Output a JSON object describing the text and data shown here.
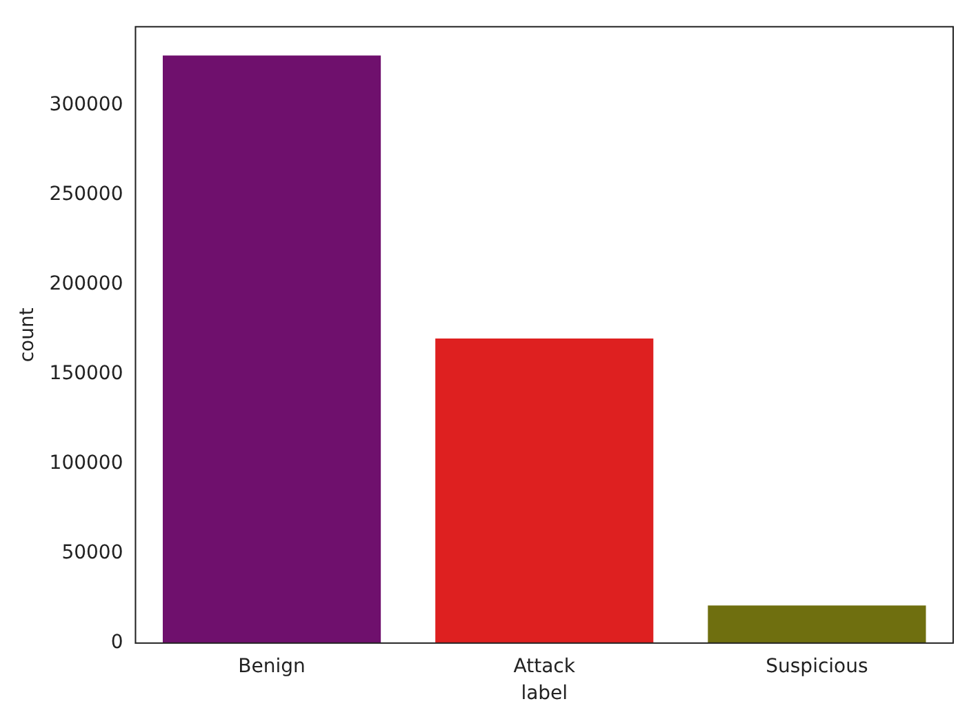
{
  "chart_data": {
    "type": "bar",
    "xlabel": "label",
    "ylabel": "count",
    "categories": [
      "Benign",
      "Attack",
      "Suspicious"
    ],
    "values": [
      328000,
      170000,
      21000
    ],
    "colors": [
      "#6f106d",
      "#de2020",
      "#6f6f0f"
    ],
    "ylim": [
      0,
      344000
    ],
    "yticks": [
      0,
      50000,
      100000,
      150000,
      200000,
      250000,
      300000
    ],
    "grid": false,
    "legend": false
  }
}
